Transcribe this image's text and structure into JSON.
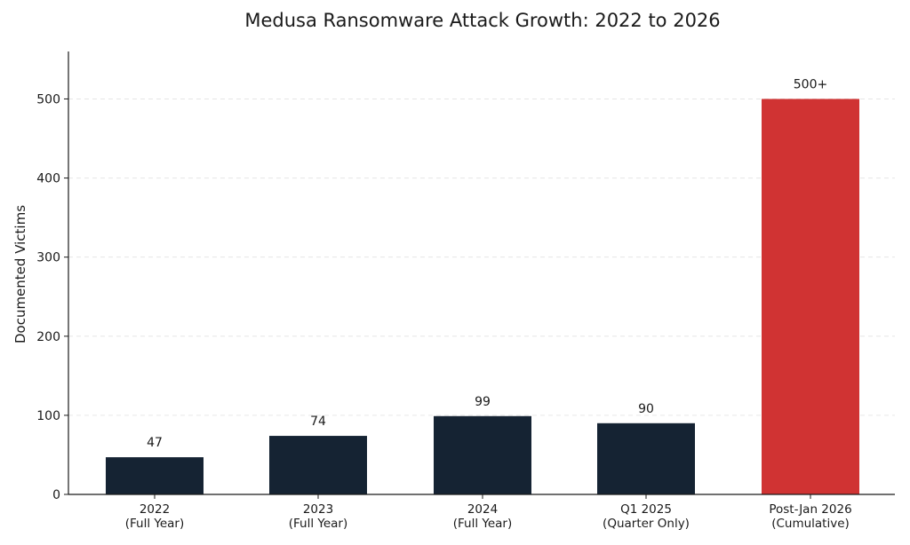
{
  "chart_data": {
    "type": "bar",
    "title": "Medusa Ransomware Attack Growth: 2022 to 2026",
    "xlabel": "",
    "ylabel": "Documented Victims",
    "ylim": [
      0,
      560
    ],
    "yticks": [
      0,
      100,
      200,
      300,
      400,
      500
    ],
    "grid": true,
    "categories": [
      [
        "2022",
        "(Full Year)"
      ],
      [
        "2023",
        "(Full Year)"
      ],
      [
        "2024",
        "(Full Year)"
      ],
      [
        "Q1 2025",
        "(Quarter Only)"
      ],
      [
        "Post-Jan 2026",
        "(Cumulative)"
      ]
    ],
    "values": [
      47,
      74,
      99,
      90,
      500
    ],
    "data_labels": [
      "47",
      "74",
      "99",
      "90",
      "500+"
    ],
    "colors": [
      "#152333",
      "#152333",
      "#152333",
      "#152333",
      "#d03333"
    ]
  }
}
